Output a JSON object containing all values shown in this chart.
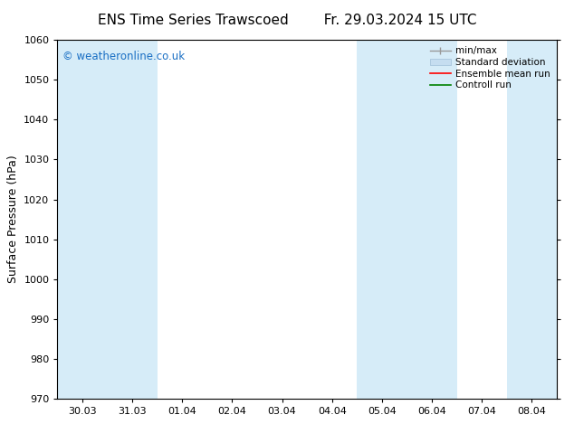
{
  "title_left": "ENS Time Series Trawscoed",
  "title_right": "Fr. 29.03.2024 15 UTC",
  "ylabel": "Surface Pressure (hPa)",
  "ylim": [
    970,
    1060
  ],
  "yticks": [
    970,
    980,
    990,
    1000,
    1010,
    1020,
    1030,
    1040,
    1050,
    1060
  ],
  "x_labels": [
    "30.03",
    "31.03",
    "01.04",
    "02.04",
    "03.04",
    "04.04",
    "05.04",
    "06.04",
    "07.04",
    "08.04"
  ],
  "x_positions": [
    0,
    1,
    2,
    3,
    4,
    5,
    6,
    7,
    8,
    9
  ],
  "band_color": "#d6ecf8",
  "watermark": "© weatheronline.co.uk",
  "watermark_color": "#1a6fc4",
  "background_color": "#ffffff",
  "title_fontsize": 11,
  "tick_fontsize": 8,
  "ylabel_fontsize": 9
}
